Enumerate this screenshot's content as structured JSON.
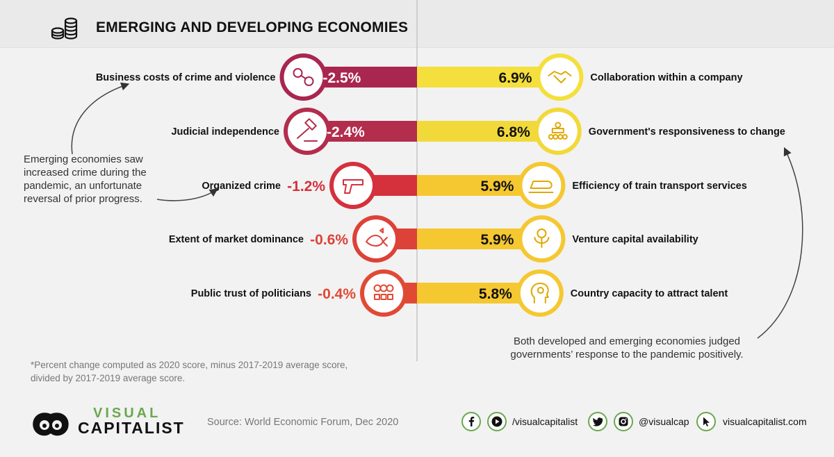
{
  "header": {
    "title": "EMERGING AND DEVELOPING ECONOMIES",
    "icon": "coins-icon"
  },
  "chart_data": {
    "type": "bar",
    "orientation": "horizontal-diverging",
    "title": "EMERGING AND DEVELOPING ECONOMIES",
    "xlabel": "",
    "ylabel": "",
    "unit": "%",
    "negative": [
      {
        "label": "Business costs of crime and violence",
        "value": -2.5,
        "display": "-2.5%",
        "icon": "handcuffs-icon",
        "color": "#a8264f"
      },
      {
        "label": "Judicial independence",
        "value": -2.4,
        "display": "-2.4%",
        "icon": "gavel-icon",
        "color": "#b32d4d"
      },
      {
        "label": "Organized crime",
        "value": -1.2,
        "display": "-1.2%",
        "icon": "pistol-icon",
        "color": "#d4313c"
      },
      {
        "label": "Extent of market dominance",
        "value": -0.6,
        "display": "-0.6%",
        "icon": "big-fish-icon",
        "color": "#dd4238"
      },
      {
        "label": "Public trust of politicians",
        "value": -0.4,
        "display": "-0.4%",
        "icon": "rating-faces-icon",
        "color": "#e04a35"
      }
    ],
    "positive": [
      {
        "label": "Collaboration within a company",
        "value": 6.9,
        "display": "6.9%",
        "icon": "handshake-icon",
        "color": "#f4df3c"
      },
      {
        "label": "Government's responsiveness to change",
        "value": 6.8,
        "display": "6.8%",
        "icon": "meeting-icon",
        "color": "#f2d93a"
      },
      {
        "label": "Efficiency of train transport services",
        "value": 5.9,
        "display": "5.9%",
        "icon": "train-icon",
        "color": "#f5c832"
      },
      {
        "label": "Venture capital availability",
        "value": 5.9,
        "display": "5.9%",
        "icon": "money-plant-icon",
        "color": "#f5c832"
      },
      {
        "label": "Country capacity to attract talent",
        "value": 5.8,
        "display": "5.8%",
        "icon": "talent-head-icon",
        "color": "#f5c832"
      }
    ],
    "grid": false,
    "legend": "none"
  },
  "annotations": {
    "left": "Emerging economies saw increased crime during the pandemic, an unfortunate reversal of prior progress.",
    "right": "Both developed and emerging economies judged governments’ response to the pandemic positively."
  },
  "footnote": "*Percent change computed as 2020 score, minus 2017-2019 average score, divided by 2017-2019 average score.",
  "footer": {
    "brand_line1": "VISUAL",
    "brand_line2": "CAPITALIST",
    "source": "Source: World Economic Forum, Dec 2020",
    "social": [
      {
        "handle": "/visualcapitalist",
        "icons": [
          "facebook-icon",
          "youtube-icon"
        ]
      },
      {
        "handle": "@visualcap",
        "icons": [
          "twitter-icon",
          "instagram-icon"
        ]
      },
      {
        "handle": "visualcapitalist.com",
        "icons": [
          "cursor-icon"
        ]
      }
    ],
    "accent_color": "#6aa84f"
  }
}
